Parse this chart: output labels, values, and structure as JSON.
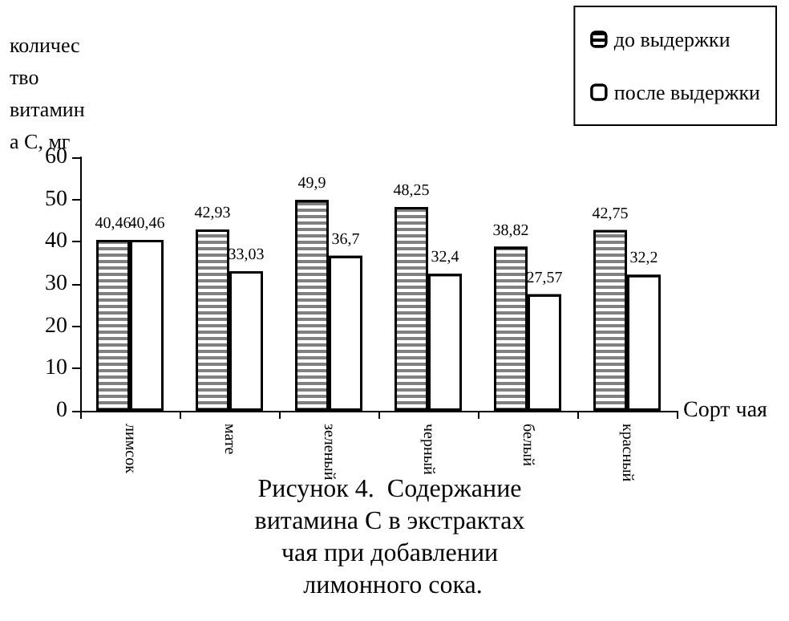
{
  "chart_data": {
    "type": "bar",
    "title": "Рисунок 4.  Содержание витамина С в экстрактах чая при добавлении лимонного сока.",
    "ylabel": "количество витамина С, мг",
    "xlabel": "Сорт чая",
    "categories": [
      "лимсок",
      "мате",
      "зеленый",
      "черный",
      "белый",
      "красный"
    ],
    "series": [
      {
        "name": "до выдержки",
        "color": "#808080",
        "values": [
          40.46,
          42.93,
          49.9,
          48.25,
          38.82,
          42.75
        ],
        "value_labels": [
          "40,46",
          "42,93",
          "49,9",
          "48,25",
          "38,82",
          "42,75"
        ]
      },
      {
        "name": "после выдержки",
        "color": "#ffffff",
        "values": [
          40.46,
          33.03,
          36.7,
          32.4,
          27.57,
          32.2
        ],
        "value_labels": [
          "40,46",
          "33,03",
          "36,7",
          "32,4",
          "27,57",
          "32,2"
        ]
      }
    ],
    "ylim": [
      0,
      60
    ],
    "yticks": [
      0,
      10,
      20,
      30,
      40,
      50,
      60
    ],
    "grid": false,
    "legend": "top right"
  }
}
